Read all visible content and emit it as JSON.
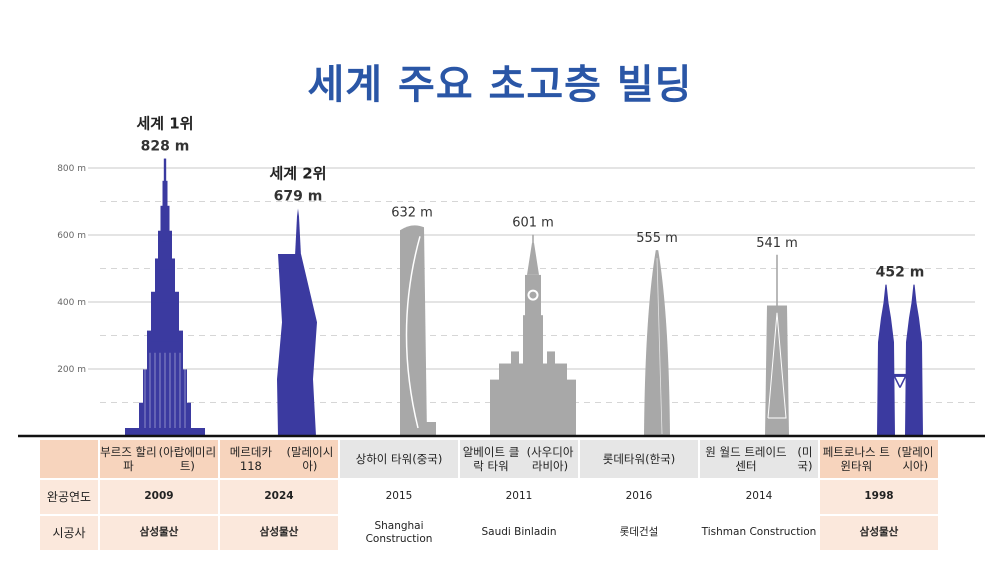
{
  "title": "세계 주요 초고층 빌딩",
  "colors": {
    "title": "#2a56a6",
    "highlight": "#3b3aa0",
    "gray": "#a8a8a8",
    "table_orange": "#f7d4bd",
    "table_orange_light": "#fbe8dc",
    "table_gray": "#e6e6e6",
    "table_gray_light": "#f2f2f2"
  },
  "chart_data": {
    "type": "bar",
    "ylabel": "",
    "ylim": [
      0,
      828
    ],
    "yticks": [
      {
        "value": 200,
        "label": "200 m"
      },
      {
        "value": 400,
        "label": "400 m"
      },
      {
        "value": 600,
        "label": "600 m"
      },
      {
        "value": 800,
        "label": "800 m"
      }
    ],
    "grid": true,
    "buildings": [
      {
        "name": "부르즈 할리파",
        "country": "(아랍에미리트)",
        "height": 828,
        "label": "828 m",
        "rank": "세계 1위",
        "highlight": true,
        "shape": "burj"
      },
      {
        "name": "메르데카 118",
        "country": "(말레이시아)",
        "height": 679,
        "label": "679 m",
        "rank": "세계 2위",
        "highlight": true,
        "shape": "merdeka"
      },
      {
        "name": "상하이 타워",
        "country": "(중국)",
        "height": 632,
        "label": "632 m",
        "rank": "",
        "highlight": false,
        "shape": "shanghai"
      },
      {
        "name": "알베이트 클락 타워",
        "country": "(사우디아라비아)",
        "height": 601,
        "label": "601 m",
        "rank": "",
        "highlight": false,
        "shape": "clock"
      },
      {
        "name": "롯데타워",
        "country": "(한국)",
        "height": 555,
        "label": "555 m",
        "rank": "",
        "highlight": false,
        "shape": "lotte"
      },
      {
        "name": "원 월드 트레이드 센터",
        "country": "(미국)",
        "height": 541,
        "label": "541 m",
        "rank": "",
        "highlight": false,
        "shape": "wtc"
      },
      {
        "name": "페트로나스 트윈타워",
        "country": "(말레이시아)",
        "height": 452,
        "label": "452 m",
        "rank": "",
        "highlight": true,
        "shape": "petronas"
      }
    ]
  },
  "table": {
    "row_labels": [
      "완공연도",
      "시공사"
    ],
    "years": [
      "2009",
      "2024",
      "2015",
      "2011",
      "2016",
      "2014",
      "1998"
    ],
    "builders": [
      "삼성물산",
      "삼성물산",
      "Shanghai Construction",
      "Saudi Binladin",
      "롯데건설",
      "Tishman Construction",
      "삼성물산"
    ]
  }
}
